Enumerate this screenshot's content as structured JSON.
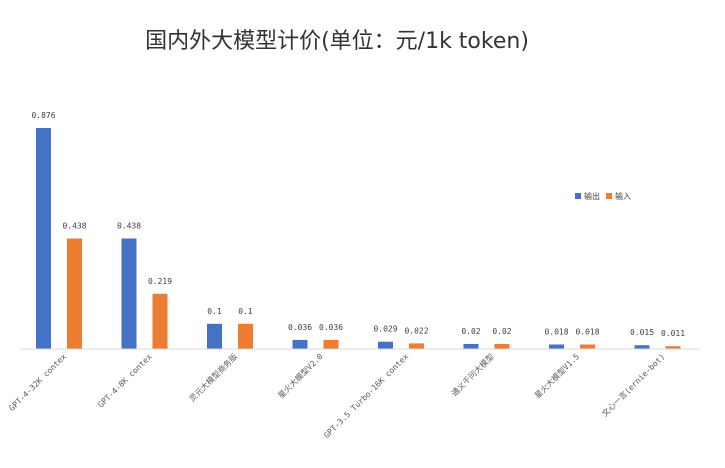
{
  "chart_data": {
    "type": "bar",
    "title": "国内外大模型计价(单位：元/1k token)",
    "categories": [
      "GPT-4-32K contex",
      "GPT-4-8K contex",
      "灵元大模型商务版",
      "星火大模型V2.0",
      "GPT-3.5 Turbo-16K contex",
      "通义千问大模型",
      "星火大模型V1.5",
      "文心一言(ernie-bot)"
    ],
    "series": [
      {
        "name": "输出",
        "color": "#4472C4",
        "values": [
          0.876,
          0.438,
          0.1,
          0.036,
          0.029,
          0.02,
          0.018,
          0.015
        ],
        "labels": [
          "0.876",
          "0.438",
          "0.1",
          "0.036",
          "0.029",
          "0.02",
          "0.018",
          "0.015"
        ]
      },
      {
        "name": "输入",
        "color": "#ED7D31",
        "values": [
          0.438,
          0.219,
          0.1,
          0.036,
          0.022,
          0.02,
          0.018,
          0.011
        ],
        "labels": [
          "0.438",
          "0.219",
          "0.1",
          "0.036",
          "0.022",
          "0.02",
          "0.018",
          "0.011"
        ]
      }
    ],
    "ylim": [
      0,
      0.876
    ],
    "grid": false,
    "legend_position": "right"
  }
}
